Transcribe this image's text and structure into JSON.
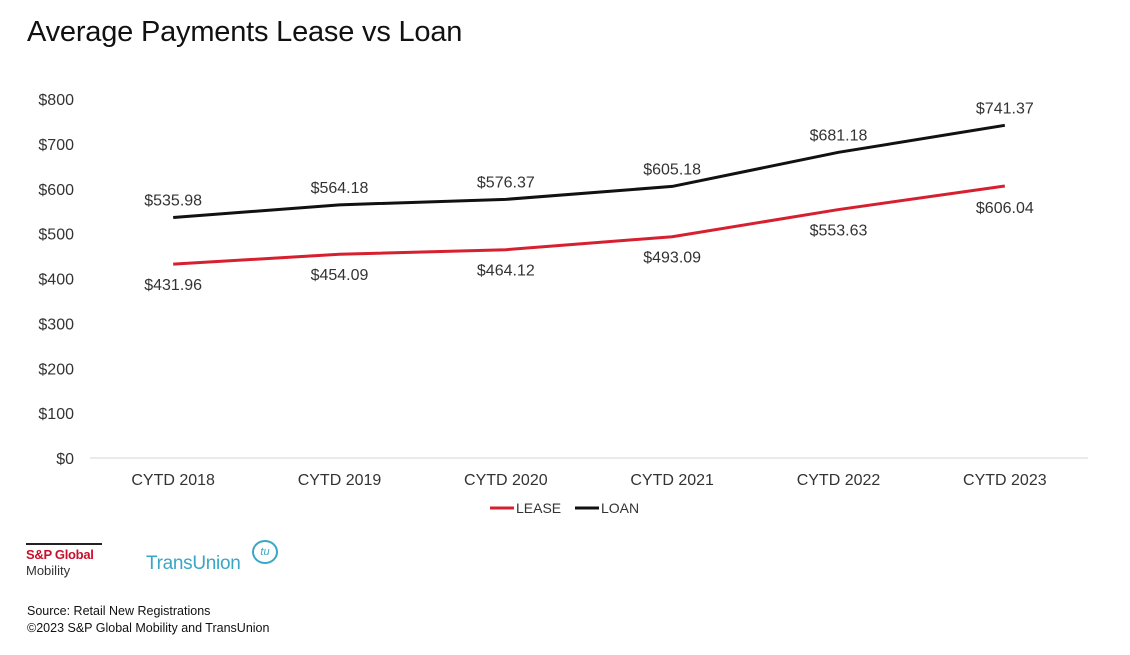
{
  "page_title": "Average Payments Lease vs Loan",
  "chart_data": {
    "type": "line",
    "title": "Average Payments Lease vs Loan",
    "xlabel": "",
    "ylabel": "",
    "categories": [
      "CYTD 2018",
      "CYTD 2019",
      "CYTD 2020",
      "CYTD 2021",
      "CYTD 2022",
      "CYTD 2023"
    ],
    "ylim": [
      0,
      800
    ],
    "yticks": [
      0,
      100,
      200,
      300,
      400,
      500,
      600,
      700,
      800
    ],
    "ytick_labels": [
      "$0",
      "$100",
      "$200",
      "$300",
      "$400",
      "$500",
      "$600",
      "$700",
      "$800"
    ],
    "grid": false,
    "legend_position": "bottom-center",
    "series": [
      {
        "name": "LEASE",
        "color": "#d6202f",
        "values": [
          431.96,
          454.09,
          464.12,
          493.09,
          553.63,
          606.04
        ],
        "labels": [
          "$431.96",
          "$454.09",
          "$464.12",
          "$493.09",
          "$553.63",
          "$606.04"
        ]
      },
      {
        "name": "LOAN",
        "color": "#111111",
        "values": [
          535.98,
          564.18,
          576.37,
          605.18,
          681.18,
          741.37
        ],
        "labels": [
          "$535.98",
          "$564.18",
          "$576.37",
          "$605.18",
          "$681.18",
          "$741.37"
        ]
      }
    ]
  },
  "logos": {
    "sp_global_name": "S&P Global",
    "sp_global_sub": "Mobility",
    "transunion_name": "TransUnion",
    "transunion_mark": "tu"
  },
  "footer": {
    "source": "Source: Retail New Registrations",
    "copyright": "©2023 S&P Global Mobility and TransUnion"
  }
}
